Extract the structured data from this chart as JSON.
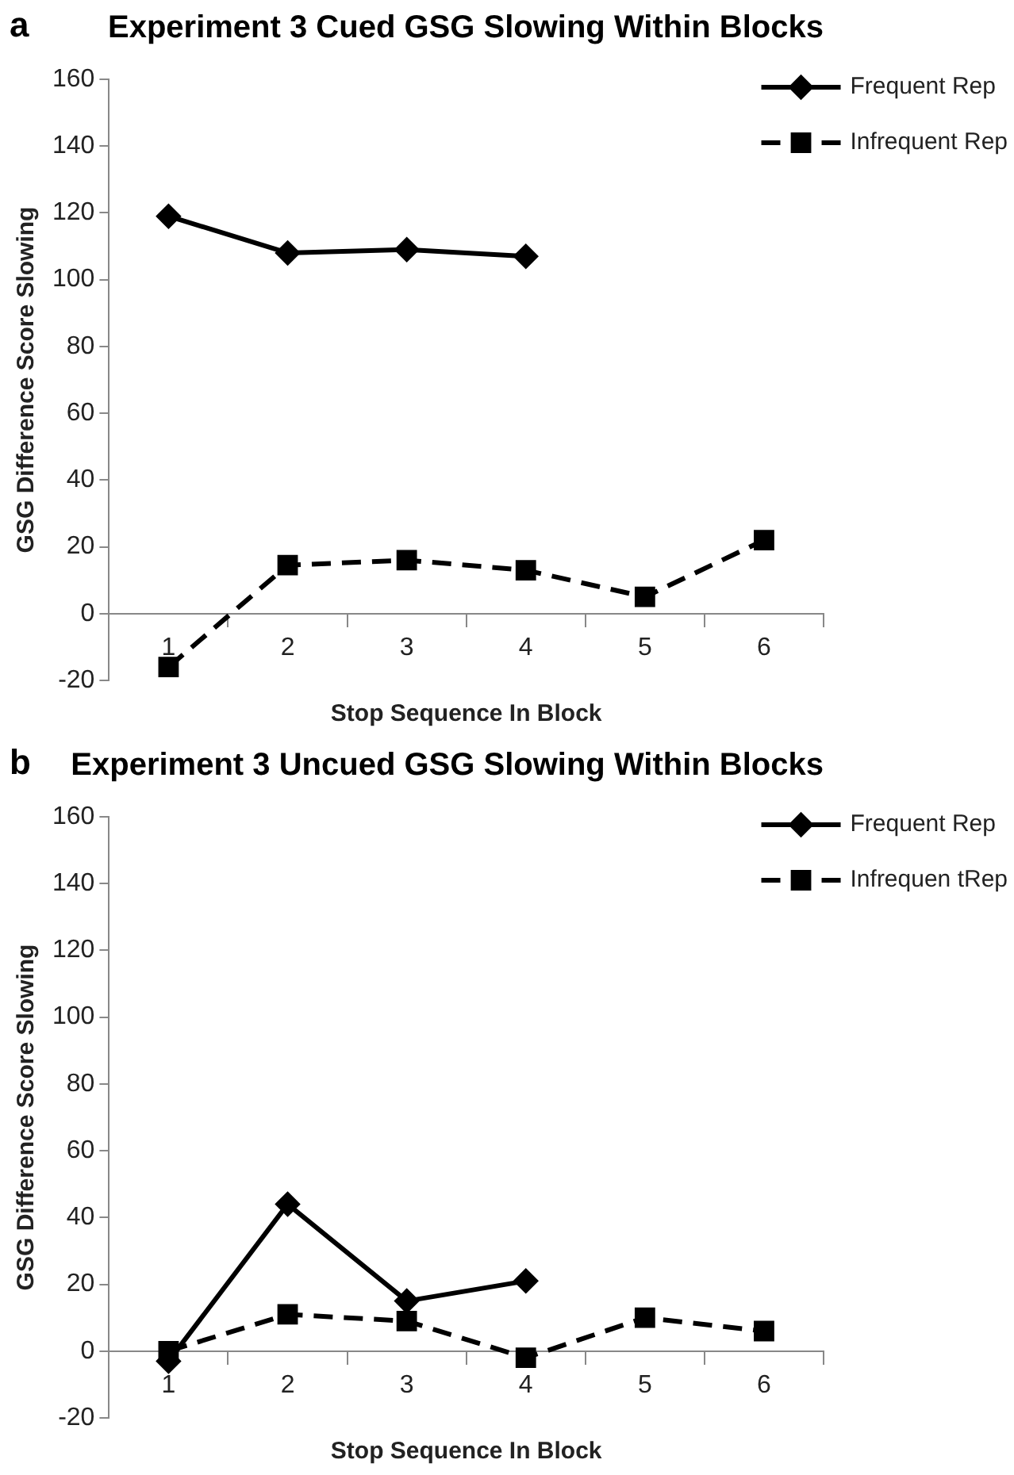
{
  "chart_data": [
    {
      "type": "line",
      "title": "Experiment 3 Cued GSG Slowing Within Blocks",
      "xlabel": "Stop Sequence In Block",
      "ylabel": "GSG Difference Score Slowing",
      "annotations": [
        "a"
      ],
      "categories": [
        "1",
        "2",
        "3",
        "4",
        "5",
        "6"
      ],
      "ylim": [
        -20,
        160
      ],
      "yticks": [
        -20,
        0,
        20,
        40,
        60,
        80,
        100,
        120,
        140,
        160
      ],
      "grid": false,
      "legend": "top right",
      "series": [
        {
          "name": "Frequent Rep",
          "color": "#000000",
          "marker": "diamond",
          "line_style": "solid",
          "values": [
            119,
            108,
            109,
            107,
            null,
            null
          ]
        },
        {
          "name": "Infrequent Rep",
          "color": "#000000",
          "marker": "square",
          "line_style": "dashed",
          "values": [
            -16,
            14.5,
            16,
            13,
            5,
            22
          ]
        }
      ]
    },
    {
      "type": "line",
      "title": "Experiment 3 Uncued GSG Slowing Within Blocks",
      "xlabel": "Stop Sequence In Block",
      "ylabel": "GSG Difference Score Slowing",
      "annotations": [
        "b"
      ],
      "categories": [
        "1",
        "2",
        "3",
        "4",
        "5",
        "6"
      ],
      "ylim": [
        -20,
        160
      ],
      "yticks": [
        -20,
        0,
        20,
        40,
        60,
        80,
        100,
        120,
        140,
        160
      ],
      "grid": false,
      "legend": "top right",
      "series": [
        {
          "name": "Frequent Rep",
          "color": "#000000",
          "marker": "diamond",
          "line_style": "solid",
          "values": [
            -3,
            44,
            15,
            21,
            null,
            null
          ]
        },
        {
          "name": "Infrequen tRep",
          "color": "#000000",
          "marker": "square",
          "line_style": "dashed",
          "values": [
            0,
            11,
            9,
            -2,
            10,
            6
          ]
        }
      ]
    }
  ]
}
